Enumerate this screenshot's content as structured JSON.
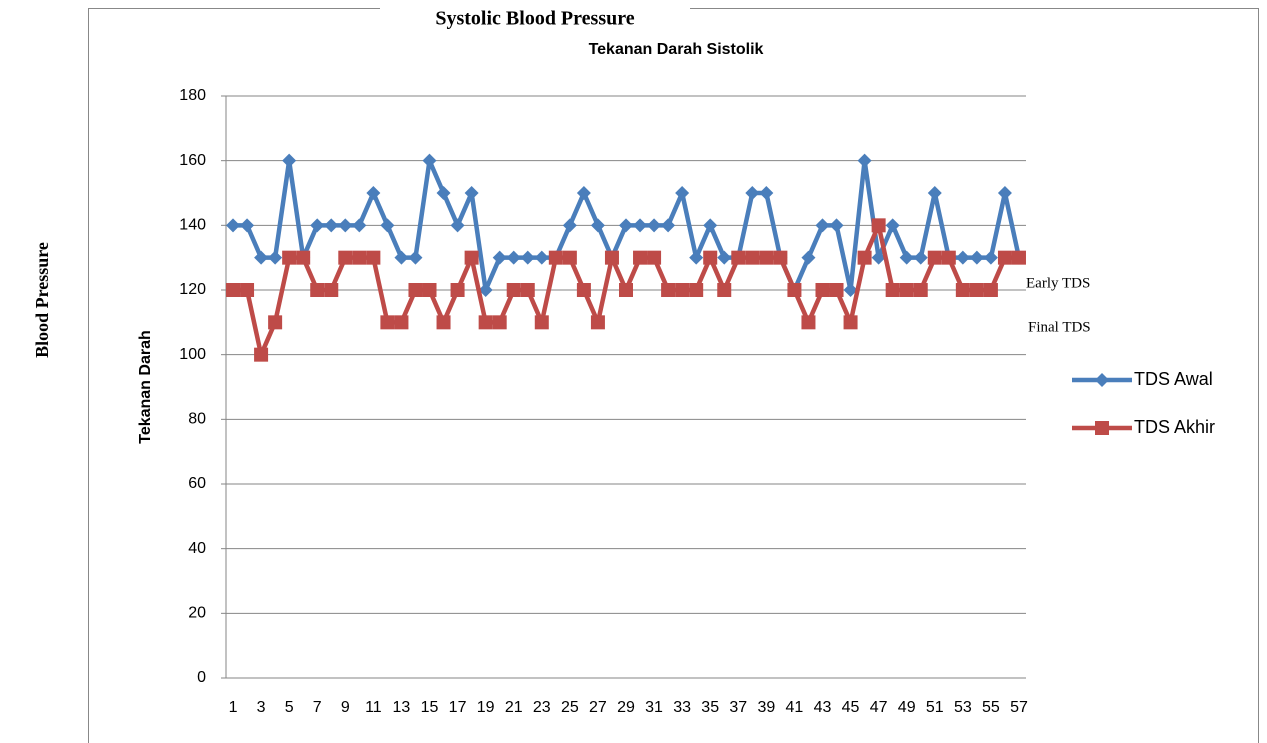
{
  "chart_data": {
    "type": "line",
    "title": "Tekanan Darah Sistolik",
    "overlay_title": "Systolic Blood Pressure",
    "y_label": "Tekanan Darah",
    "outer_y_label": "Blood Pressure",
    "annotations": [
      "Early TDS",
      "Final TDS"
    ],
    "categories": [
      1,
      null,
      3,
      null,
      5,
      null,
      7,
      null,
      9,
      null,
      11,
      null,
      13,
      null,
      15,
      null,
      17,
      null,
      19,
      null,
      21,
      null,
      23,
      null,
      25,
      null,
      27,
      null,
      29,
      null,
      31,
      null,
      33,
      null,
      35,
      null,
      37,
      null,
      39,
      null,
      41,
      null,
      43,
      null,
      45,
      null,
      47,
      null,
      49,
      null,
      51,
      null,
      53,
      null,
      55,
      null,
      57
    ],
    "series": [
      {
        "name": "TDS Awal",
        "color": "#4a7ebb",
        "marker": "diamond",
        "values": [
          140,
          140,
          130,
          130,
          160,
          130,
          140,
          140,
          140,
          140,
          150,
          140,
          130,
          130,
          160,
          150,
          140,
          150,
          120,
          130,
          130,
          130,
          130,
          130,
          140,
          150,
          140,
          130,
          140,
          140,
          140,
          140,
          150,
          130,
          140,
          130,
          130,
          150,
          150,
          130,
          120,
          130,
          140,
          140,
          120,
          160,
          130,
          140,
          130,
          130,
          150,
          130,
          130,
          130,
          130,
          150,
          130
        ]
      },
      {
        "name": "TDS Akhir",
        "color": "#be4b48",
        "marker": "square",
        "values": [
          120,
          120,
          100,
          110,
          130,
          130,
          120,
          120,
          130,
          130,
          130,
          110,
          110,
          120,
          120,
          110,
          120,
          130,
          110,
          110,
          120,
          120,
          110,
          130,
          130,
          120,
          110,
          130,
          120,
          130,
          130,
          120,
          120,
          120,
          130,
          120,
          130,
          130,
          130,
          130,
          120,
          110,
          120,
          120,
          110,
          130,
          140,
          120,
          120,
          120,
          130,
          130,
          120,
          120,
          120,
          130,
          130
        ]
      }
    ],
    "ylim": [
      0,
      180
    ],
    "yticks": [
      0,
      20,
      40,
      60,
      80,
      100,
      120,
      140,
      160,
      180
    ],
    "grid": true
  }
}
